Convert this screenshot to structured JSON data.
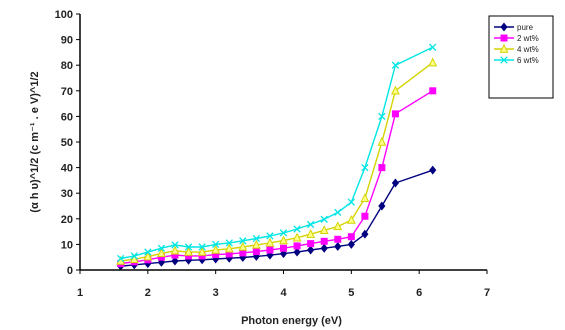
{
  "chart_data": {
    "type": "line",
    "title": "",
    "xlabel": "Photon energy (eV)",
    "ylabel": "(α h υ)^1/2 (c m⁻¹ . e V)^1/2",
    "xlim": [
      1,
      7
    ],
    "ylim": [
      0,
      100
    ],
    "x_ticks": [
      "1",
      "2",
      "3",
      "4",
      "5",
      "6",
      "7"
    ],
    "y_ticks": [
      "0",
      "10",
      "20",
      "30",
      "40",
      "50",
      "60",
      "70",
      "80",
      "90",
      "100"
    ],
    "grid": false,
    "legend_position": "top-right",
    "series": [
      {
        "name": "pure",
        "color": "#000080",
        "marker": "diamond",
        "x": [
          1.6,
          1.8,
          2.0,
          2.2,
          2.4,
          2.6,
          2.8,
          3.0,
          3.2,
          3.4,
          3.6,
          3.8,
          4.0,
          4.2,
          4.4,
          4.6,
          4.8,
          5.0,
          5.2,
          5.45,
          5.65,
          6.2
        ],
        "y": [
          1.5,
          2.0,
          2.5,
          3.0,
          3.5,
          3.8,
          4.0,
          4.3,
          4.6,
          4.9,
          5.3,
          5.8,
          6.4,
          7.0,
          7.8,
          8.5,
          9.2,
          10.0,
          14.0,
          25.0,
          34.0,
          39.0
        ]
      },
      {
        "name": "2 wt%",
        "color": "#ff00ff",
        "marker": "square",
        "x": [
          1.6,
          1.8,
          2.0,
          2.2,
          2.4,
          2.6,
          2.8,
          3.0,
          3.2,
          3.4,
          3.6,
          3.8,
          4.0,
          4.2,
          4.4,
          4.6,
          4.8,
          5.0,
          5.2,
          5.45,
          5.65,
          6.2
        ],
        "y": [
          2.5,
          3.2,
          4.0,
          5.0,
          5.8,
          5.5,
          5.5,
          6.0,
          6.3,
          6.7,
          7.2,
          7.8,
          8.5,
          9.4,
          10.3,
          11.2,
          12.0,
          13.0,
          21.0,
          40.0,
          61.0,
          70.0
        ]
      },
      {
        "name": "4 wt%",
        "color": "#d4d400",
        "marker": "triangle",
        "x": [
          1.6,
          1.8,
          2.0,
          2.2,
          2.4,
          2.6,
          2.8,
          3.0,
          3.2,
          3.4,
          3.6,
          3.8,
          4.0,
          4.2,
          4.4,
          4.6,
          4.8,
          5.0,
          5.2,
          5.45,
          5.65,
          6.2
        ],
        "y": [
          3.5,
          4.2,
          5.2,
          6.5,
          7.5,
          7.0,
          7.0,
          7.8,
          8.3,
          9.0,
          9.8,
          10.6,
          11.5,
          12.6,
          14.0,
          15.5,
          17.0,
          19.5,
          28.0,
          50.0,
          70.0,
          81.0
        ]
      },
      {
        "name": "6 wt%",
        "color": "#00e5e5",
        "marker": "x",
        "x": [
          1.6,
          1.8,
          2.0,
          2.2,
          2.4,
          2.6,
          2.8,
          3.0,
          3.2,
          3.4,
          3.6,
          3.8,
          4.0,
          4.2,
          4.4,
          4.6,
          4.8,
          5.0,
          5.2,
          5.45,
          5.65,
          6.2
        ],
        "y": [
          4.5,
          5.5,
          7.0,
          8.5,
          9.8,
          9.0,
          9.0,
          10.0,
          10.6,
          11.4,
          12.3,
          13.3,
          14.5,
          16.0,
          17.8,
          19.8,
          22.5,
          26.5,
          40.0,
          60.0,
          80.0,
          87.0
        ]
      }
    ]
  }
}
